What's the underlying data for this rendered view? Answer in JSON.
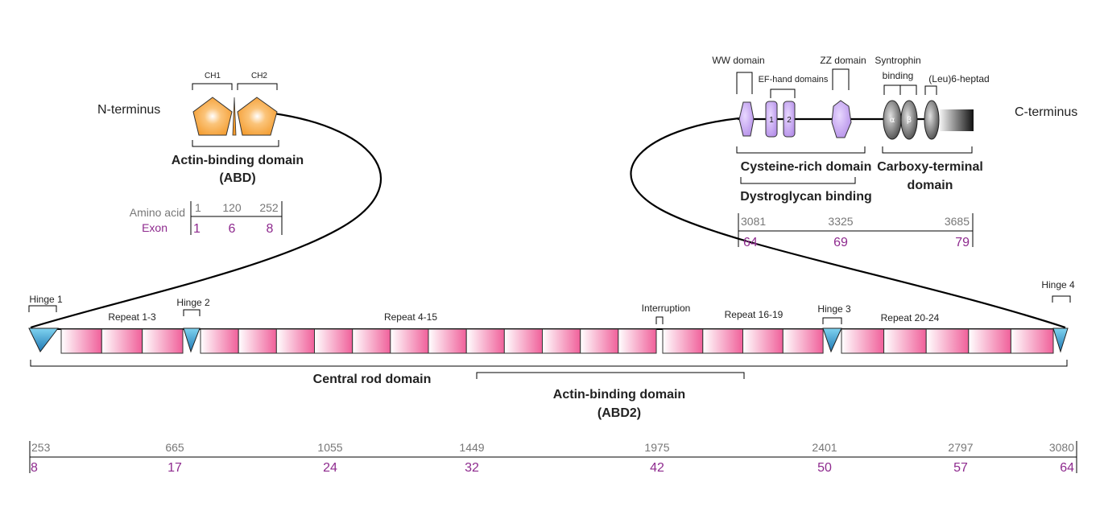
{
  "n_terminus": "N-terminus",
  "c_terminus": "C-terminus",
  "abd": {
    "ch1": "CH1",
    "ch2": "CH2",
    "title1": "Actin-binding domain",
    "title2": "(ABD)",
    "aa_label": "Amino acid",
    "exon_label": "Exon",
    "aa": [
      "1",
      "120",
      "252"
    ],
    "exon": [
      "1",
      "6",
      "8"
    ]
  },
  "cterm": {
    "ww": "WW domain",
    "ef": "EF-hand domains",
    "ef1": "1",
    "ef2": "2",
    "zz": "ZZ domain",
    "syn1": "Syntrophin",
    "syn2": "binding",
    "leu": "(Leu)6-heptad",
    "alpha": "α",
    "beta": "β",
    "cys": "Cysteine-rich domain",
    "dg": "Dystroglycan binding",
    "carb1": "Carboxy-terminal",
    "carb2": "domain",
    "aa": [
      "3081",
      "3325",
      "3685"
    ],
    "exon": [
      "64",
      "69",
      "79"
    ]
  },
  "rod": {
    "hinge1": "Hinge 1",
    "hinge2": "Hinge 2",
    "hinge3": "Hinge 3",
    "hinge4": "Hinge 4",
    "repeat_1_3": "Repeat 1-3",
    "repeat_4_15": "Repeat 4-15",
    "interruption": "Interruption",
    "repeat_16_19": "Repeat 16-19",
    "repeat_20_24": "Repeat 20-24",
    "central": "Central rod domain",
    "abd2_1": "Actin-binding domain",
    "abd2_2": "(ABD2)",
    "aa": [
      "253",
      "665",
      "1055",
      "1449",
      "1975",
      "2401",
      "2797",
      "3080"
    ],
    "exon": [
      "8",
      "17",
      "24",
      "32",
      "42",
      "50",
      "57",
      "64"
    ]
  },
  "colors": {
    "repeat_pink": "#f0609a",
    "hinge_blue": "#1f78b4",
    "ch_orange": "#f39a2c",
    "domain_lilac": "#c9a8ee",
    "number_purple": "#8e2a8e",
    "number_grey": "#777777"
  }
}
